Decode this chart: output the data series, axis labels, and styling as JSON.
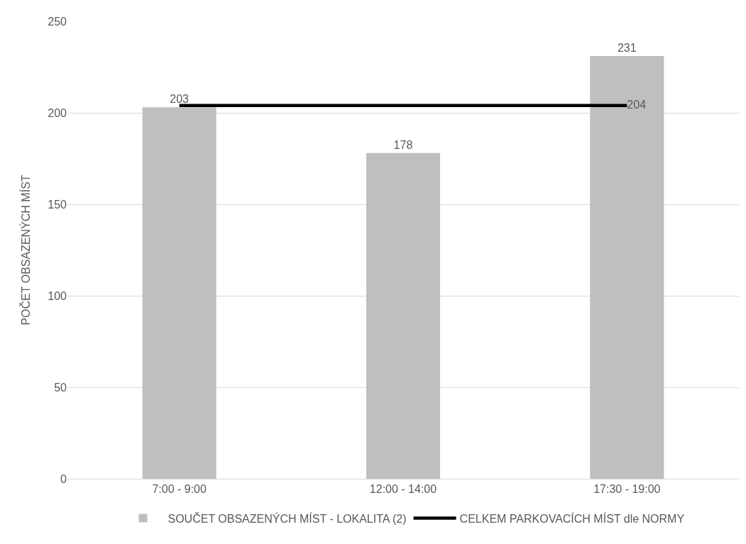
{
  "chart_data": {
    "type": "bar",
    "ylabel": "POČET OBSAZENÝCH MÍST",
    "categories": [
      "7:00 - 9:00",
      "12:00 - 14:00",
      "17:30 - 19:00"
    ],
    "series": [
      {
        "name": "SOUČET OBSAZENÝCH MÍST - LOKALITA (2)",
        "color": "#bfbfbf",
        "values": [
          203,
          178,
          231
        ],
        "value_labels": [
          "203",
          "178",
          "231"
        ]
      },
      {
        "name": "CELKEM PARKOVACÍCH MÍST dle NORMY",
        "type": "line",
        "color": "#000000",
        "values": [
          204,
          204,
          204
        ],
        "value_labels": [
          null,
          null,
          "204"
        ]
      }
    ],
    "ylim": [
      0,
      250
    ],
    "yticks": [
      0,
      50,
      100,
      150,
      200,
      250
    ],
    "grid": "y",
    "legend": "bottom"
  }
}
